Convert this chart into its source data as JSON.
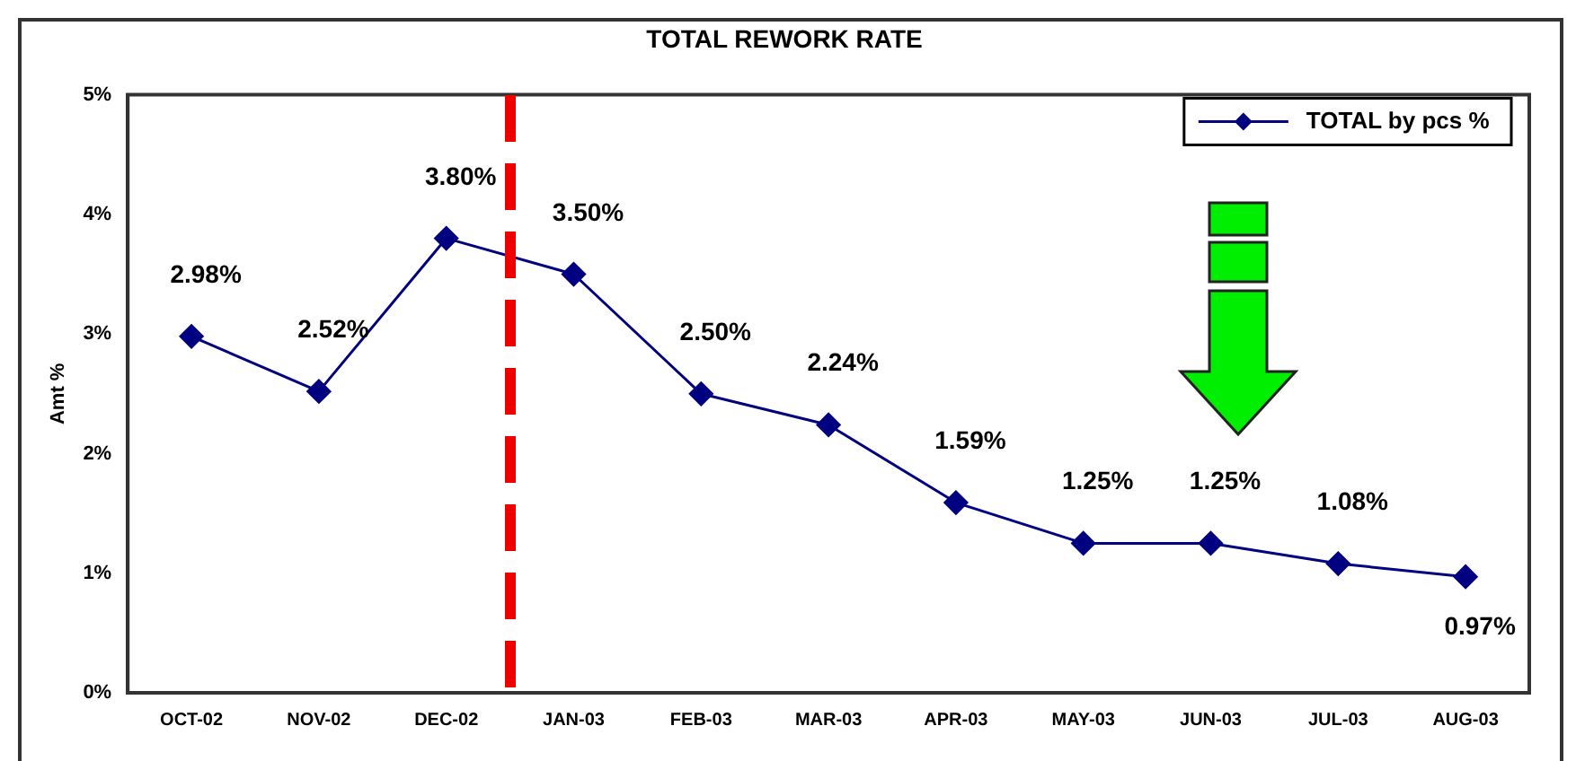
{
  "chart_data": {
    "type": "line",
    "title": "TOTAL REWORK RATE",
    "ylabel": "Amt %",
    "categories": [
      "OCT-02",
      "NOV-02",
      "DEC-02",
      "JAN-03",
      "FEB-03",
      "MAR-03",
      "APR-03",
      "MAY-03",
      "JUN-03",
      "JUL-03",
      "AUG-03"
    ],
    "series": [
      {
        "name": "TOTAL by pcs %",
        "color": "#000080",
        "values": [
          2.98,
          2.52,
          3.8,
          3.5,
          2.5,
          2.24,
          1.59,
          1.25,
          1.25,
          1.08,
          0.97
        ],
        "value_labels": [
          "2.98%",
          "2.52%",
          "3.80%",
          "3.50%",
          "2.50%",
          "2.24%",
          "1.59%",
          "1.25%",
          "1.25%",
          "1.08%",
          "0.97%"
        ]
      }
    ],
    "ylim": [
      0,
      5
    ],
    "yticks": [
      {
        "value": 0,
        "label": "0%"
      },
      {
        "value": 1,
        "label": "1%"
      },
      {
        "value": 2,
        "label": "2%"
      },
      {
        "value": 3,
        "label": "3%"
      },
      {
        "value": 4,
        "label": "4%"
      },
      {
        "value": 5,
        "label": "5%"
      }
    ],
    "marker": "diamond",
    "grid": false,
    "legend": "top right"
  }
}
